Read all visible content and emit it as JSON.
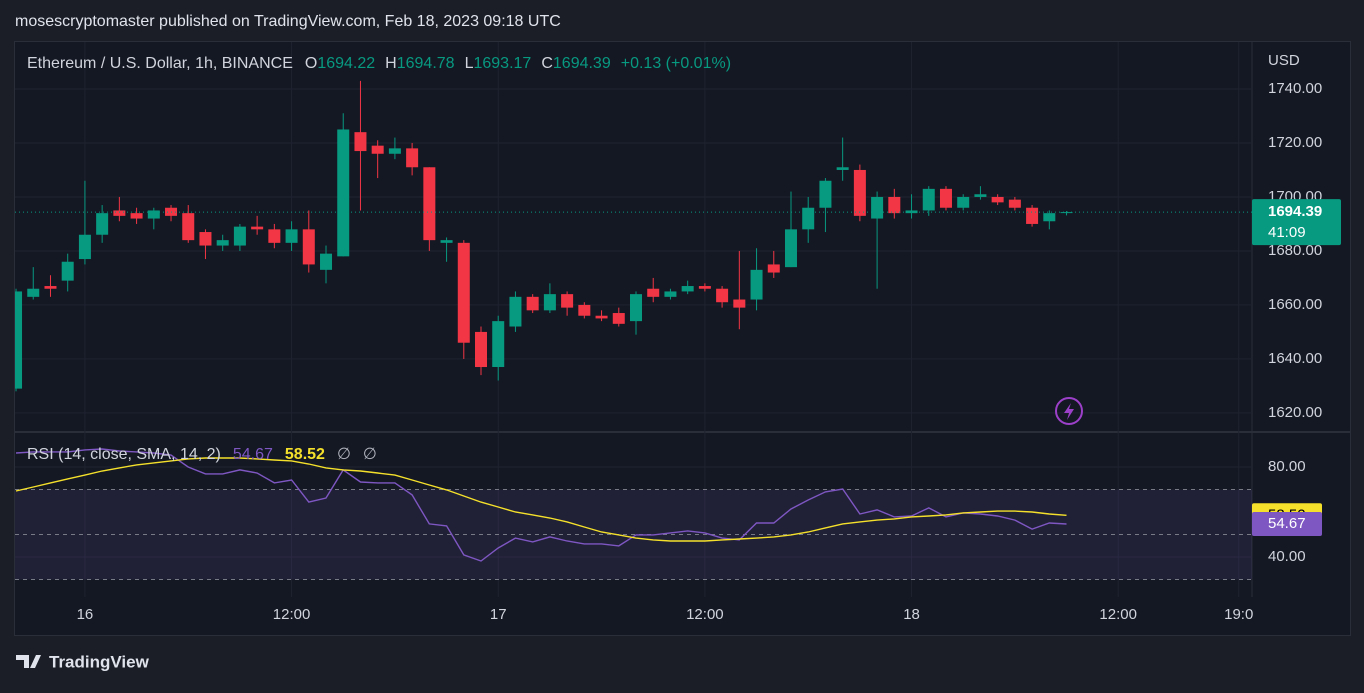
{
  "header": {
    "text": "mosescryptomaster published on TradingView.com, Feb 18, 2023 09:18 UTC"
  },
  "chart_data": [
    {
      "type": "candlestick",
      "title": "Ethereum / U.S. Dollar, 1h, BINANCE",
      "ohlc_keys": [
        "O",
        "H",
        "L",
        "C"
      ],
      "change": "+0.13 (+0.01%)",
      "unit": "USD",
      "countdown": "41:09",
      "up_color": "#089981",
      "down_color": "#f23645",
      "open": [
        1629,
        1663,
        1667,
        1669,
        1677,
        1686,
        1695,
        1694,
        1692,
        1696,
        1694,
        1687,
        1682,
        1682,
        1689,
        1688,
        1683,
        1688,
        1673,
        1678,
        1724,
        1719,
        1716,
        1718,
        1711,
        1683,
        1683,
        1650,
        1637,
        1652,
        1663,
        1658,
        1664,
        1660,
        1656,
        1657,
        1654,
        1666,
        1663,
        1665,
        1667,
        1666,
        1662,
        1662,
        1675,
        1674,
        1688,
        1696,
        1710,
        1710,
        1692,
        1700,
        1694,
        1695,
        1703,
        1696,
        1700,
        1700,
        1699,
        1696,
        1691,
        1694.22
      ],
      "high": [
        1666,
        1674,
        1671,
        1679,
        1706,
        1697,
        1700,
        1696,
        1696,
        1697,
        1697,
        1688,
        1686,
        1690,
        1693,
        1690,
        1691,
        1695,
        1682,
        1731,
        1743,
        1721,
        1722,
        1720,
        1711,
        1685,
        1684,
        1652,
        1656,
        1665,
        1664,
        1668,
        1665,
        1661,
        1658,
        1659,
        1665,
        1670,
        1666,
        1669,
        1668,
        1667,
        1680,
        1681,
        1680,
        1702,
        1700,
        1707,
        1722,
        1712,
        1702,
        1703,
        1701,
        1704,
        1704,
        1701,
        1704,
        1701,
        1700,
        1697,
        1695,
        1694.78
      ],
      "low": [
        1628,
        1662,
        1663,
        1665,
        1675,
        1683,
        1691,
        1690,
        1688,
        1691,
        1683,
        1677,
        1680,
        1680,
        1686,
        1681,
        1680,
        1672,
        1668,
        1678,
        1695,
        1707,
        1714,
        1708,
        1680,
        1676,
        1640,
        1634,
        1632,
        1650,
        1657,
        1657,
        1656,
        1655,
        1654,
        1652,
        1649,
        1661,
        1662,
        1664,
        1665,
        1659,
        1651,
        1658,
        1670,
        1674,
        1683,
        1687,
        1706,
        1691,
        1666,
        1692,
        1692,
        1693,
        1695,
        1695,
        1699,
        1697,
        1695,
        1689,
        1688,
        1693.17
      ],
      "close": [
        1665,
        1666,
        1666,
        1676,
        1686,
        1694,
        1693,
        1692,
        1695,
        1693,
        1684,
        1682,
        1684,
        1689,
        1688,
        1683,
        1688,
        1675,
        1679,
        1725,
        1717,
        1716,
        1718,
        1711,
        1684,
        1684,
        1646,
        1637,
        1654,
        1663,
        1658,
        1664,
        1659,
        1656,
        1655,
        1653,
        1664,
        1663,
        1665,
        1667,
        1666,
        1661,
        1659,
        1673,
        1672,
        1688,
        1696,
        1706,
        1711,
        1693,
        1700,
        1694,
        1695,
        1703,
        1696,
        1700,
        1701,
        1698,
        1696,
        1690,
        1694,
        1694.39
      ],
      "xlim": [
        -0.06,
        71.77
      ],
      "xticks": [
        {
          "value": 4,
          "label": "16"
        },
        {
          "value": 16,
          "label": "12:00"
        },
        {
          "value": 28,
          "label": "17"
        },
        {
          "value": 40,
          "label": "12:00"
        },
        {
          "value": 52,
          "label": "18"
        },
        {
          "value": 64,
          "label": "12:00"
        },
        {
          "value": 71,
          "label": "19:0"
        }
      ],
      "ylim": [
        1613.3,
        1757.4
      ],
      "yticks": [
        {
          "value": 1620,
          "label": "1620.00"
        },
        {
          "value": 1640,
          "label": "1640.00"
        },
        {
          "value": 1660,
          "label": "1660.00"
        },
        {
          "value": 1680,
          "label": "1680.00"
        },
        {
          "value": 1700,
          "label": "1700.00"
        },
        {
          "value": 1720,
          "label": "1720.00"
        },
        {
          "value": 1740,
          "label": "1740.00"
        }
      ],
      "grid": true
    },
    {
      "type": "line",
      "title": "RSI (14, close, SMA, 14, 2)",
      "extra_legend": [
        "∅",
        "∅"
      ],
      "series": [
        {
          "color": "#7e57c2",
          "values": [
            86.2,
            86.7,
            86.7,
            86.7,
            87.6,
            88,
            87.1,
            86.7,
            86.2,
            85.3,
            80,
            76.9,
            76.9,
            78.7,
            77.3,
            72.9,
            74.2,
            64.4,
            66.2,
            78.7,
            73.3,
            72.9,
            72.9,
            67.6,
            54.7,
            53.8,
            40.9,
            38.2,
            44,
            48.4,
            46.7,
            48.9,
            47.1,
            45.8,
            45.8,
            44.9,
            49.8,
            49.8,
            50.7,
            51.6,
            50.7,
            48.4,
            47.6,
            55.1,
            55.1,
            61.3,
            65.3,
            68.9,
            70.2,
            59.1,
            60.9,
            57.8,
            58.2,
            61.8,
            57.8,
            59.6,
            59.1,
            58.2,
            56.4,
            52.4,
            55.1,
            54.67
          ]
        },
        {
          "color": "#f5e12b",
          "values": [
            69.3,
            71.1,
            72.9,
            74.7,
            76.4,
            78.2,
            79.6,
            80.9,
            81.8,
            82.7,
            83.6,
            84,
            84,
            84,
            83.6,
            83.1,
            82.7,
            81.3,
            79.6,
            78.7,
            78.2,
            77.3,
            76.4,
            74.2,
            72,
            69.8,
            67.1,
            64.4,
            62.2,
            60,
            58.7,
            57.3,
            55.6,
            53.3,
            51.1,
            49.8,
            48.4,
            47.6,
            47.1,
            47.1,
            47.1,
            47.6,
            48,
            48.4,
            48.9,
            49.8,
            51.1,
            52.9,
            54.7,
            55.6,
            56.4,
            56.9,
            57.8,
            58.2,
            58.7,
            59.6,
            60,
            60.4,
            60.4,
            60,
            59.1,
            58.52
          ]
        }
      ],
      "bands": [
        30,
        50,
        70
      ],
      "xlim": [
        -0.06,
        71.77
      ],
      "ylim": [
        22.2,
        95.1
      ],
      "yticks": [
        {
          "value": 40,
          "label": "40.00"
        },
        {
          "value": 80,
          "label": "80.00"
        }
      ],
      "grid": true
    }
  ],
  "footer": {
    "brand": "TradingView"
  }
}
